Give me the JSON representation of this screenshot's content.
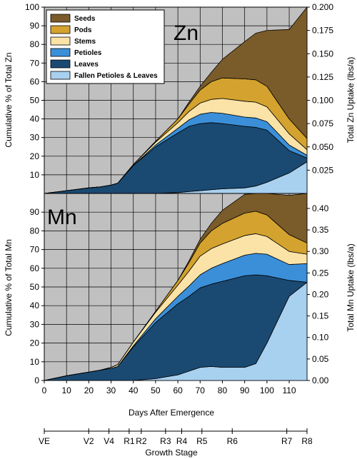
{
  "chart_data": [
    {
      "type": "area",
      "label": "Zn",
      "stacked": true,
      "ylabel_left": "Cumulative % of Total Zn",
      "ylabel_right": "Total Zn Uptake (lbs/a)",
      "ylim_left": [
        0,
        100
      ],
      "yticks_left": [
        10,
        20,
        30,
        40,
        50,
        60,
        70,
        80,
        90,
        100
      ],
      "ylim_right": [
        0,
        0.2
      ],
      "yticks_right": [
        "0.025",
        "0.050",
        "0.075",
        "0.100",
        "0.125",
        "0.150",
        "0.175",
        "0.200"
      ],
      "xlim": [
        0,
        118
      ],
      "grid": true,
      "legend": "top-left",
      "x": [
        0,
        10,
        20,
        25,
        30,
        33,
        40,
        50,
        60,
        65,
        70,
        75,
        80,
        90,
        95,
        100,
        110,
        118
      ],
      "series": [
        {
          "name": "Fallen Petioles & Leaves",
          "color": "#a8d0ef",
          "values": [
            0,
            0,
            0,
            0,
            0,
            0,
            0,
            0,
            0.5,
            1,
            1.5,
            2,
            2.5,
            3,
            4,
            6,
            11,
            17
          ]
        },
        {
          "name": "Leaves",
          "color": "#1a4a72",
          "values": [
            0,
            1.5,
            3,
            3.5,
            4.5,
            5.5,
            15,
            25,
            32,
            35,
            36,
            36,
            35,
            33,
            31.5,
            28,
            12,
            2
          ]
        },
        {
          "name": "Petioles",
          "color": "#3b8fd8",
          "values": [
            0,
            0,
            0,
            0,
            0,
            0,
            0,
            1,
            2.5,
            3.5,
            5,
            5.5,
            5.5,
            5,
            5,
            4.5,
            3,
            1.5
          ]
        },
        {
          "name": "Stems",
          "color": "#fbe3a8",
          "values": [
            0,
            0,
            0,
            0,
            0,
            0,
            0.5,
            1.5,
            3,
            4.5,
            6,
            7,
            8,
            8.5,
            8.5,
            8,
            6,
            3
          ]
        },
        {
          "name": "Pods",
          "color": "#d4a22e",
          "values": [
            0,
            0,
            0,
            0,
            0,
            0,
            0,
            0.5,
            2,
            4,
            7,
            9.5,
            11,
            12,
            12,
            11,
            8,
            6
          ]
        },
        {
          "name": "Seeds",
          "color": "#7a5b2a",
          "values": [
            0,
            0,
            0,
            0,
            0,
            0,
            0,
            0,
            0,
            1,
            2,
            5,
            10,
            20,
            25,
            30,
            48,
            70.5
          ]
        }
      ]
    },
    {
      "type": "area",
      "label": "Mn",
      "stacked": true,
      "ylabel_left": "Cumulative % of Total Mn",
      "ylabel_right": "Total Mn Uptake (lbs/a)",
      "ylim_left": [
        0,
        100
      ],
      "yticks_left": [
        0,
        10,
        20,
        30,
        40,
        50,
        60,
        70,
        80,
        90
      ],
      "ylim_right": [
        0,
        0.4348
      ],
      "yticks_right": [
        "0.00",
        "0.05",
        "0.10",
        "0.15",
        "0.20",
        "0.25",
        "0.30",
        "0.35",
        "0.40"
      ],
      "xlabel": "Days After Emergence",
      "xlim": [
        0,
        118
      ],
      "xticks": [
        "0",
        "10",
        "20",
        "30",
        "40",
        "50",
        "60",
        "70",
        "80",
        "90",
        "100",
        "110"
      ],
      "grid": true,
      "x": [
        0,
        10,
        20,
        25,
        30,
        33,
        40,
        50,
        60,
        65,
        70,
        75,
        80,
        90,
        95,
        100,
        110,
        118
      ],
      "series": [
        {
          "name": "Fallen Petioles & Leaves",
          "color": "#a8d0ef",
          "values": [
            0,
            0,
            0,
            0,
            0,
            0,
            0,
            1,
            3,
            5,
            7,
            7.5,
            7,
            7,
            9,
            20,
            45,
            52.5
          ]
        },
        {
          "name": "Leaves",
          "color": "#1a4a72",
          "values": [
            0,
            2.5,
            4.5,
            5.5,
            6.5,
            7.5,
            18,
            30,
            38,
            40,
            42.5,
            44,
            46,
            49,
            47.5,
            36,
            8.5,
            0
          ]
        },
        {
          "name": "Petioles",
          "color": "#3b8fd8",
          "values": [
            0,
            0,
            0,
            0,
            0,
            0,
            0.5,
            2,
            4,
            5.5,
            7,
            8.5,
            9.5,
            11,
            11.5,
            11.5,
            8.5,
            10
          ]
        },
        {
          "name": "Stems",
          "color": "#fbe3a8",
          "values": [
            0,
            0,
            0,
            0,
            0.5,
            1,
            2,
            3.5,
            6,
            8,
            10,
            10.5,
            10.5,
            10.5,
            10.5,
            9.5,
            7,
            5
          ]
        },
        {
          "name": "Pods",
          "color": "#d4a22e",
          "values": [
            0,
            0,
            0,
            0,
            0,
            0,
            0,
            0.5,
            2.5,
            4.5,
            7,
            9.5,
            11,
            12,
            12,
            11.5,
            9,
            6
          ]
        },
        {
          "name": "Seeds",
          "color": "#7a5b2a",
          "values": [
            0,
            0,
            0,
            0,
            0,
            0,
            0,
            0,
            0,
            1,
            2,
            4,
            7,
            10,
            9.5,
            11.5,
            21,
            26.5
          ]
        }
      ]
    }
  ],
  "growth_stage": {
    "label": "Growth Stage",
    "stages": [
      {
        "name": "VE",
        "day": 0
      },
      {
        "name": "V2",
        "day": 22
      },
      {
        "name": "V4",
        "day": 32
      },
      {
        "name": "R1",
        "day": 42
      },
      {
        "name": "R2",
        "day": 48
      },
      {
        "name": "R3",
        "day": 60
      },
      {
        "name": "R4",
        "day": 68
      },
      {
        "name": "R5",
        "day": 78
      },
      {
        "name": "R6",
        "day": 93
      },
      {
        "name": "R7",
        "day": 120
      },
      {
        "name": "R8",
        "day": 130
      }
    ]
  }
}
